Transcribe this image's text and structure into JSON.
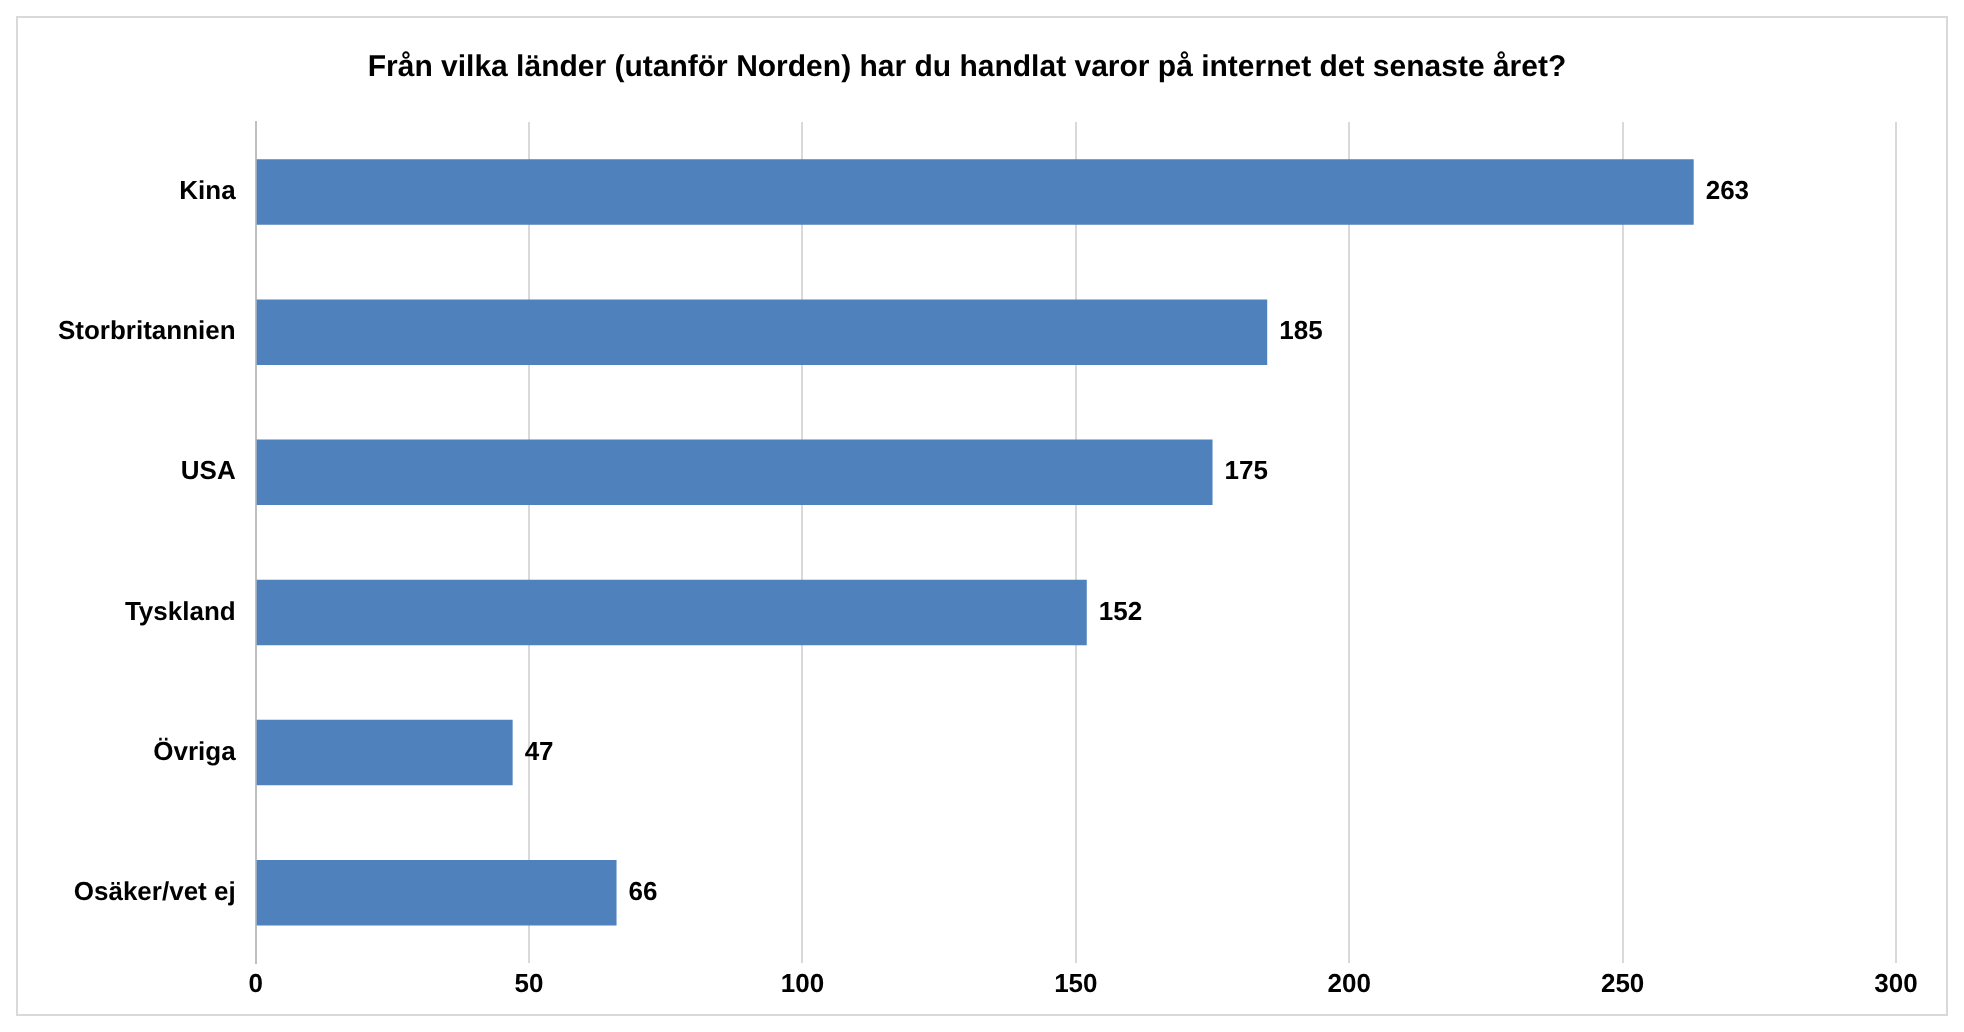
{
  "chart_data": {
    "type": "bar",
    "orientation": "horizontal",
    "title": "Från vilka länder (utanför Norden) har du handlat varor på internet det senaste året?",
    "categories": [
      "Kina",
      "Storbritannien",
      "USA",
      "Tyskland",
      "Övriga",
      "Osäker/vet ej"
    ],
    "values": [
      263,
      185,
      175,
      152,
      47,
      66
    ],
    "color": "#4f81bd",
    "xlim": [
      0,
      300
    ],
    "xticks": [
      0,
      50,
      100,
      150,
      200,
      250,
      300
    ],
    "grid": "x",
    "data_labels": true,
    "legend": false
  }
}
